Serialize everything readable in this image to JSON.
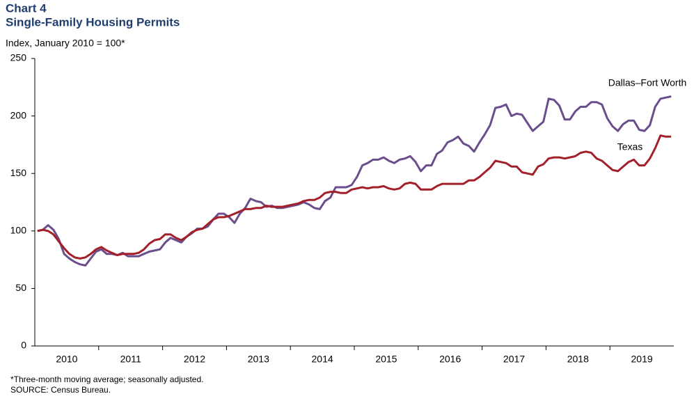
{
  "chart_data": {
    "type": "line",
    "chart_label": "Chart 4",
    "title": "Single-Family Housing Permits",
    "y_label": "Index, January 2010 = 100*",
    "footnote": "*Three-month moving average; seasonally adjusted.",
    "source": "SOURCE: Census Bureau.",
    "categories": [
      null,
      null,
      null,
      null,
      null,
      null,
      "2010",
      null,
      null,
      null,
      null,
      null,
      null,
      null,
      null,
      null,
      null,
      null,
      "2011",
      null,
      null,
      null,
      null,
      null,
      null,
      null,
      null,
      null,
      null,
      null,
      "2012",
      null,
      null,
      null,
      null,
      null,
      null,
      null,
      null,
      null,
      null,
      null,
      "2013",
      null,
      null,
      null,
      null,
      null,
      null,
      null,
      null,
      null,
      null,
      null,
      "2014",
      null,
      null,
      null,
      null,
      null,
      null,
      null,
      null,
      null,
      null,
      null,
      "2015",
      null,
      null,
      null,
      null,
      null,
      null,
      null,
      null,
      null,
      null,
      null,
      "2016",
      null,
      null,
      null,
      null,
      null,
      null,
      null,
      null,
      null,
      null,
      null,
      "2017",
      null,
      null,
      null,
      null,
      null,
      null,
      null,
      null,
      null,
      null,
      null,
      "2018",
      null,
      null,
      null,
      null,
      null,
      null,
      null,
      null,
      null,
      null,
      null,
      "2019",
      null,
      null,
      null,
      null,
      null
    ],
    "series": [
      {
        "name": "Dallas–Fort Worth",
        "color": "#6a4e8c",
        "values": [
          100,
          101,
          105,
          101,
          93,
          80,
          76,
          73,
          71,
          70,
          76,
          82,
          84,
          80,
          80,
          79,
          81,
          78,
          78,
          78,
          80,
          82,
          83,
          84,
          90,
          94,
          92,
          90,
          95,
          98,
          102,
          102,
          104,
          110,
          115,
          115,
          112,
          107,
          115,
          120,
          128,
          126,
          125,
          121,
          122,
          120,
          120,
          121,
          122,
          123,
          125,
          123,
          120,
          119,
          126,
          129,
          138,
          138,
          138,
          140,
          147,
          157,
          159,
          162,
          162,
          164,
          161,
          159,
          162,
          163,
          165,
          160,
          152,
          157,
          157,
          167,
          170,
          177,
          179,
          182,
          176,
          174,
          169,
          177,
          184,
          192,
          207,
          208,
          210,
          200,
          202,
          201,
          194,
          187,
          191,
          195,
          215,
          214,
          209,
          197,
          197,
          204,
          208,
          208,
          212,
          212,
          210,
          198,
          191,
          187,
          193,
          196,
          196,
          188,
          187,
          192,
          208,
          215,
          216,
          217
        ]
      },
      {
        "name": "Texas",
        "color": "#a3202b",
        "values": [
          100,
          101,
          100,
          97,
          91,
          85,
          80,
          77,
          76,
          77,
          80,
          84,
          86,
          83,
          81,
          79,
          80,
          80,
          80,
          81,
          84,
          89,
          92,
          93,
          97,
          97,
          94,
          92,
          95,
          99,
          101,
          102,
          106,
          110,
          112,
          112,
          113,
          115,
          117,
          119,
          119,
          120,
          120,
          122,
          121,
          121,
          121,
          122,
          123,
          124,
          126,
          127,
          127,
          129,
          133,
          134,
          134,
          133,
          133,
          136,
          137,
          138,
          137,
          138,
          138,
          139,
          137,
          136,
          137,
          141,
          142,
          141,
          136,
          136,
          136,
          139,
          141,
          141,
          141,
          141,
          141,
          144,
          144,
          147,
          151,
          155,
          161,
          160,
          159,
          156,
          156,
          151,
          150,
          149,
          156,
          158,
          163,
          164,
          164,
          163,
          164,
          165,
          168,
          169,
          168,
          163,
          161,
          157,
          153,
          152,
          156,
          160,
          162,
          157,
          157,
          163,
          172,
          183,
          182,
          182
        ]
      }
    ],
    "ylim": [
      0,
      250
    ],
    "yticks": [
      0,
      50,
      100,
      150,
      200,
      250
    ],
    "grid": false
  }
}
